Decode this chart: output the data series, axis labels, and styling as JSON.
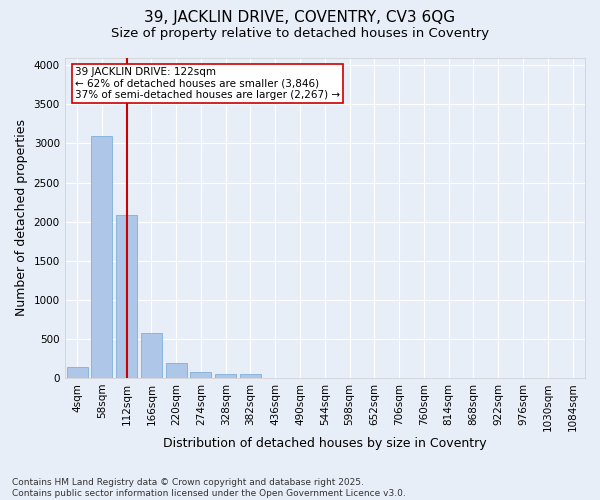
{
  "title": "39, JACKLIN DRIVE, COVENTRY, CV3 6QG",
  "subtitle": "Size of property relative to detached houses in Coventry",
  "xlabel": "Distribution of detached houses by size in Coventry",
  "ylabel": "Number of detached properties",
  "categories": [
    "4sqm",
    "58sqm",
    "112sqm",
    "166sqm",
    "220sqm",
    "274sqm",
    "328sqm",
    "382sqm",
    "436sqm",
    "490sqm",
    "544sqm",
    "598sqm",
    "652sqm",
    "706sqm",
    "760sqm",
    "814sqm",
    "868sqm",
    "922sqm",
    "976sqm",
    "1030sqm",
    "1084sqm"
  ],
  "bar_values": [
    140,
    3100,
    2090,
    580,
    195,
    75,
    55,
    45,
    0,
    0,
    0,
    0,
    0,
    0,
    0,
    0,
    0,
    0,
    0,
    0,
    0
  ],
  "bar_color": "#aec6e8",
  "bar_edge_color": "#6fa8d6",
  "background_color": "#e8eef7",
  "grid_color": "#ffffff",
  "annotation_line1": "39 JACKLIN DRIVE: 122sqm",
  "annotation_line2": "← 62% of detached houses are smaller (3,846)",
  "annotation_line3": "37% of semi-detached houses are larger (2,267) →",
  "annotation_box_color": "#ffffff",
  "annotation_border_color": "#cc0000",
  "vline_x": 2.0,
  "vline_color": "#cc0000",
  "ylim": [
    0,
    4100
  ],
  "yticks": [
    0,
    500,
    1000,
    1500,
    2000,
    2500,
    3000,
    3500,
    4000
  ],
  "footer_text": "Contains HM Land Registry data © Crown copyright and database right 2025.\nContains public sector information licensed under the Open Government Licence v3.0.",
  "title_fontsize": 11,
  "subtitle_fontsize": 9.5,
  "axis_label_fontsize": 9,
  "tick_fontsize": 7.5,
  "annotation_fontsize": 7.5,
  "footer_fontsize": 6.5
}
